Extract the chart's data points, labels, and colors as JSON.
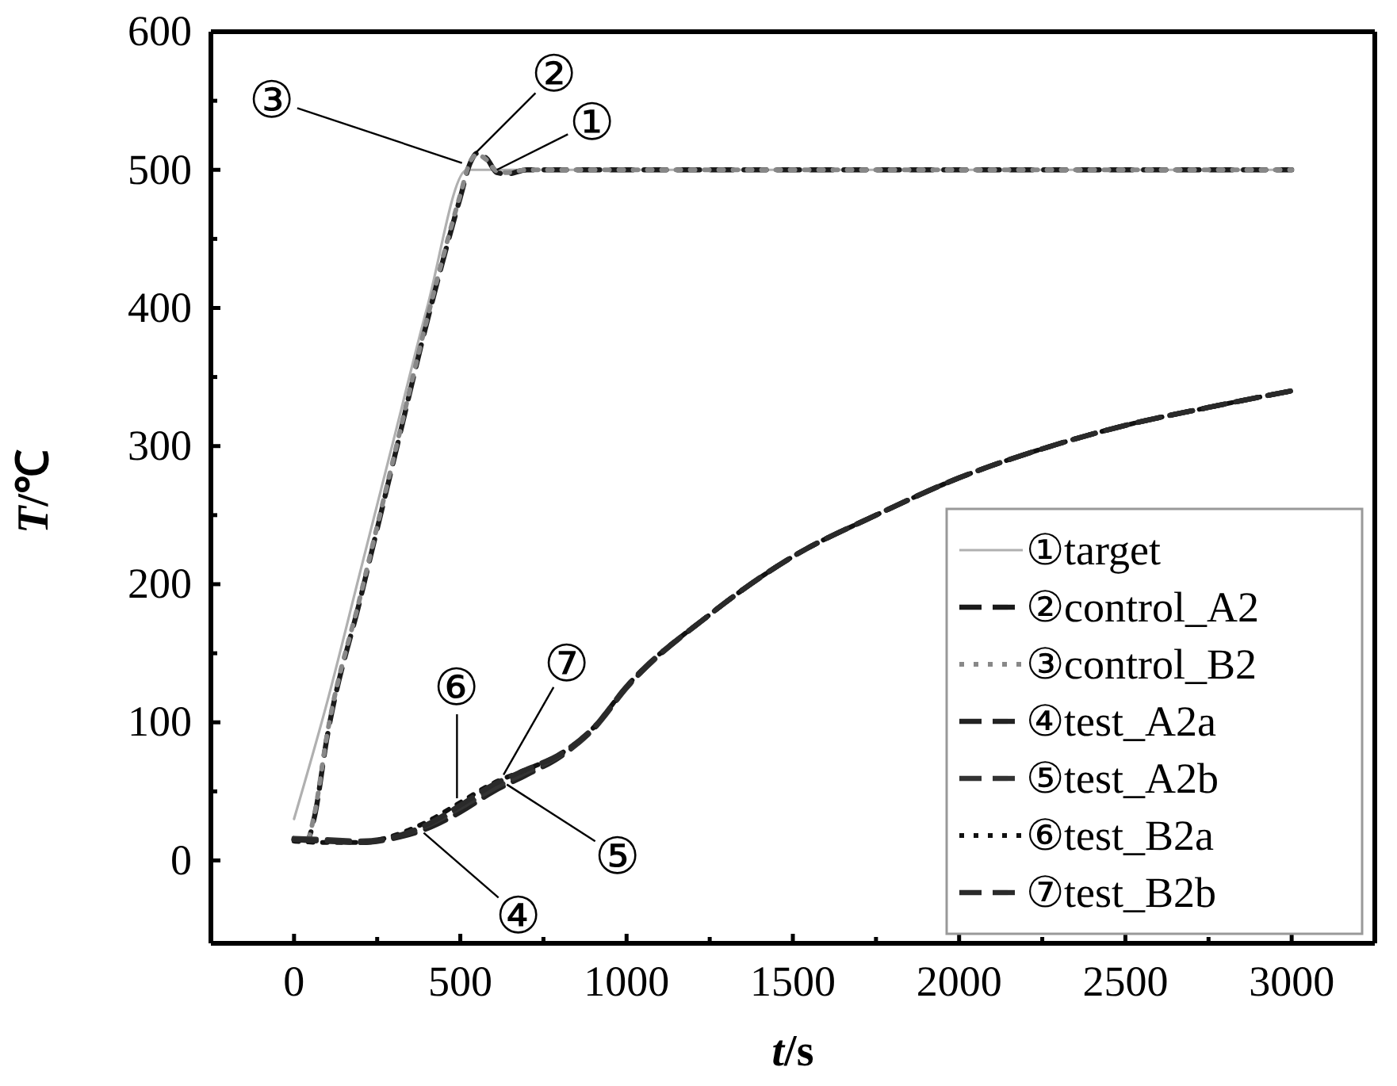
{
  "chart_data": {
    "type": "line",
    "xlabel": "t/s",
    "ylabel": "T/℃",
    "xlim": [
      -250,
      3250
    ],
    "ylim": [
      -60,
      600
    ],
    "xticks": [
      0,
      {
        "value": 250,
        "label": null
      },
      500,
      {
        "value": 750,
        "label": null
      },
      1000,
      {
        "value": 1250,
        "label": null
      },
      1500,
      {
        "value": 1750,
        "label": null
      },
      2000,
      {
        "value": 2250,
        "label": null
      },
      2500,
      {
        "value": 2750,
        "label": null
      },
      3000
    ],
    "yticks": [
      0,
      {
        "value": 50,
        "label": null
      },
      100,
      {
        "value": 150,
        "label": null
      },
      200,
      {
        "value": 250,
        "label": null
      },
      300,
      {
        "value": 350,
        "label": null
      },
      400,
      {
        "value": 450,
        "label": null
      },
      500,
      {
        "value": 550,
        "label": null
      },
      600
    ],
    "grid": false,
    "legend": "bottom right",
    "marker": "none",
    "series": [
      {
        "name": "①target",
        "color": "#b0b0b0",
        "line_style": "solid",
        "x": [
          0,
          100,
          200,
          300,
          400,
          520,
          600,
          1000,
          2000,
          3000
        ],
        "values": [
          30,
          115,
          210,
          305,
          400,
          500,
          500,
          500,
          500,
          500
        ]
      },
      {
        "name": "②control_A2",
        "color": "#1a1a1a",
        "line_style": "dashed",
        "x": [
          0,
          40,
          60,
          100,
          200,
          300,
          400,
          500,
          530,
          550,
          580,
          610,
          640,
          700,
          1000,
          2000,
          3000
        ],
        "values": [
          15,
          15,
          30,
          90,
          190,
          290,
          390,
          480,
          505,
          512,
          508,
          498,
          497,
          500,
          500,
          500,
          500
        ]
      },
      {
        "name": "③control_B2",
        "color": "#888888",
        "line_style": "dotted",
        "x": [
          0,
          40,
          60,
          100,
          200,
          300,
          400,
          500,
          530,
          550,
          580,
          610,
          640,
          700,
          1000,
          2000,
          3000
        ],
        "values": [
          15,
          15,
          32,
          92,
          192,
          292,
          392,
          482,
          506,
          511,
          507,
          499,
          498,
          500,
          500,
          500,
          500
        ]
      },
      {
        "name": "④test_A2a",
        "color": "#222222",
        "line_style": "dashed",
        "x": [
          0,
          100,
          200,
          300,
          400,
          500,
          600,
          700,
          800,
          900,
          1000,
          1250,
          1500,
          1750,
          2000,
          2250,
          2500,
          2750,
          3000
        ],
        "values": [
          15,
          14,
          13,
          16,
          23,
          35,
          50,
          62,
          75,
          95,
          125,
          178,
          220,
          250,
          277,
          298,
          315,
          328,
          340
        ]
      },
      {
        "name": "⑤test_A2b",
        "color": "#333333",
        "line_style": "dashed",
        "x": [
          0,
          100,
          200,
          300,
          400,
          500,
          600,
          700,
          800,
          900,
          1000,
          1250,
          1500,
          1750,
          2000,
          2250,
          2500,
          2750,
          3000
        ],
        "values": [
          16,
          15,
          14,
          17,
          25,
          38,
          52,
          64,
          76,
          95,
          125,
          178,
          220,
          250,
          277,
          298,
          315,
          328,
          340
        ]
      },
      {
        "name": "⑥test_B2a",
        "color": "#111111",
        "line_style": "dotted",
        "x": [
          0,
          100,
          200,
          300,
          400,
          500,
          600,
          700,
          800,
          900,
          1000,
          1250,
          1500,
          1750,
          2000,
          2250,
          2500,
          2750,
          3000
        ],
        "values": [
          14,
          13,
          13,
          18,
          28,
          42,
          56,
          66,
          77,
          96,
          126,
          178,
          220,
          250,
          277,
          298,
          315,
          328,
          340
        ]
      },
      {
        "name": "⑦test_B2b",
        "color": "#2a2a2a",
        "line_style": "dashed",
        "x": [
          0,
          100,
          200,
          300,
          400,
          500,
          600,
          700,
          800,
          900,
          1000,
          1250,
          1500,
          1750,
          2000,
          2250,
          2500,
          2750,
          3000
        ],
        "values": [
          15,
          14,
          13,
          17,
          26,
          40,
          55,
          66,
          77,
          96,
          126,
          178,
          220,
          250,
          277,
          298,
          315,
          328,
          340
        ]
      }
    ],
    "annotations": [
      {
        "text": "①",
        "x": 610,
        "y": 500
      },
      {
        "text": "②",
        "x": 545,
        "y": 512
      },
      {
        "text": "③",
        "x": 505,
        "y": 505
      },
      {
        "text": "④",
        "x": 390,
        "y": 20
      },
      {
        "text": "⑤",
        "x": 640,
        "y": 55
      },
      {
        "text": "⑥",
        "x": 490,
        "y": 45
      },
      {
        "text": "⑦",
        "x": 630,
        "y": 62
      }
    ]
  }
}
